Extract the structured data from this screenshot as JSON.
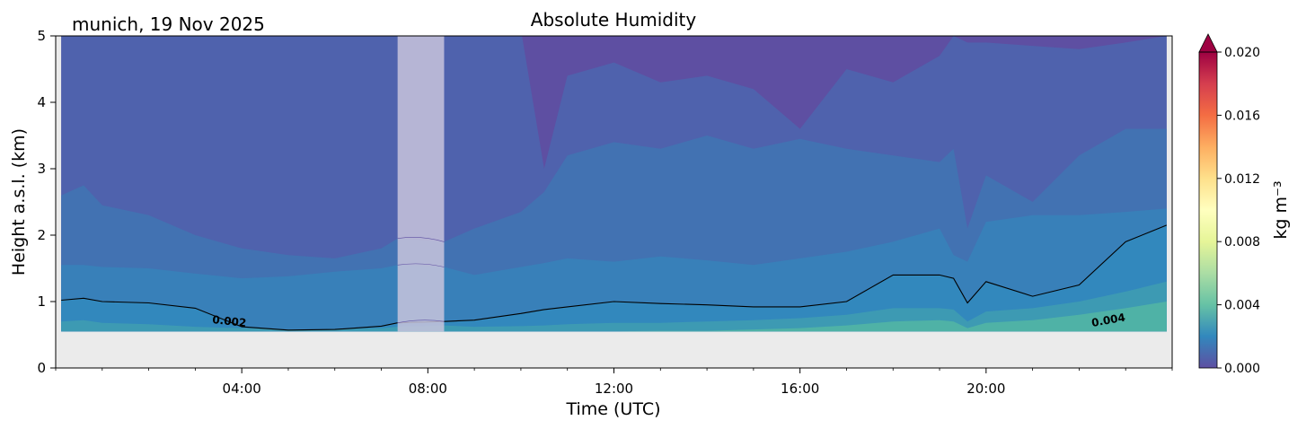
{
  "chart_data": {
    "type": "heatmap",
    "title": "Absolute Humidity",
    "location_date": "munich, 19 Nov 2025",
    "xlabel": "Time (UTC)",
    "ylabel": "Height a.s.l. (km)",
    "xlim_hours": [
      0,
      24
    ],
    "ylim_km": [
      0,
      5
    ],
    "x_ticks": [
      "04:00",
      "08:00",
      "12:00",
      "16:00",
      "20:00"
    ],
    "x_tick_hours": [
      4,
      8,
      12,
      16,
      20
    ],
    "y_ticks": [
      "0",
      "1",
      "2",
      "3",
      "4",
      "5"
    ],
    "y_tick_values": [
      0,
      1,
      2,
      3,
      4,
      5
    ],
    "data_bottom_km": 0.55,
    "data_start_hour": 0.12,
    "data_end_hour": 23.88,
    "missing_data_hours": [
      7.35,
      8.35
    ],
    "colorbar": {
      "label": "kg m⁻³",
      "range": [
        0.0,
        0.02
      ],
      "extend": "max",
      "ticks": [
        "0.000",
        "0.004",
        "0.008",
        "0.012",
        "0.016",
        "0.020"
      ],
      "tick_values": [
        0.0,
        0.004,
        0.008,
        0.012,
        0.016,
        0.02
      ]
    },
    "contour_labels": [
      {
        "text": "0.002",
        "value": 0.002
      },
      {
        "text": "0.004",
        "value": 0.004
      }
    ],
    "boundaries": {
      "hours": [
        0.12,
        0.6,
        1.0,
        2.0,
        3.0,
        4.0,
        5.0,
        6.0,
        7.0,
        7.35,
        8.35,
        9.0,
        10.0,
        10.5,
        11.0,
        12.0,
        13.0,
        14.0,
        15.0,
        16.0,
        17.0,
        18.0,
        19.0,
        19.3,
        19.6,
        20.0,
        21.0,
        22.0,
        23.0,
        23.88
      ],
      "level_0_002_km": [
        1.02,
        1.05,
        1.0,
        0.98,
        0.9,
        0.62,
        0.57,
        0.58,
        0.63,
        0.68,
        0.7,
        0.72,
        0.82,
        0.88,
        0.92,
        1.0,
        0.97,
        0.95,
        0.92,
        0.92,
        1.0,
        1.4,
        1.4,
        1.35,
        0.98,
        1.3,
        1.08,
        1.25,
        1.9,
        2.15
      ],
      "level_0_0015_km": [
        1.55,
        1.55,
        1.52,
        1.5,
        1.42,
        1.35,
        1.38,
        1.45,
        1.5,
        1.55,
        1.52,
        1.4,
        1.52,
        1.58,
        1.65,
        1.6,
        1.68,
        1.62,
        1.55,
        1.65,
        1.75,
        1.9,
        2.1,
        1.7,
        1.6,
        2.2,
        2.3,
        2.3,
        2.35,
        2.4
      ],
      "level_0_001_km": [
        2.6,
        2.75,
        2.45,
        2.3,
        2.0,
        1.8,
        1.7,
        1.65,
        1.8,
        1.95,
        1.9,
        2.1,
        2.35,
        2.65,
        3.2,
        3.4,
        3.3,
        3.5,
        3.3,
        3.45,
        3.3,
        3.2,
        3.1,
        3.3,
        2.1,
        2.9,
        2.5,
        3.2,
        3.6,
        3.6
      ],
      "level_0_0005_km": [
        5.1,
        5.1,
        5.1,
        5.1,
        5.1,
        5.1,
        5.1,
        5.1,
        5.1,
        5.1,
        5.1,
        5.1,
        5.1,
        3.0,
        4.4,
        4.6,
        4.3,
        4.4,
        4.2,
        3.6,
        4.5,
        4.3,
        4.7,
        5.0,
        4.9,
        4.9,
        4.85,
        4.8,
        4.9,
        5.0
      ],
      "level_0_0025_km": [
        0.7,
        0.72,
        0.68,
        0.66,
        0.62,
        0.6,
        0.58,
        0.58,
        0.6,
        0.62,
        0.64,
        0.62,
        0.63,
        0.64,
        0.66,
        0.68,
        0.68,
        0.7,
        0.72,
        0.75,
        0.8,
        0.9,
        0.9,
        0.88,
        0.7,
        0.85,
        0.9,
        1.0,
        1.15,
        1.3
      ],
      "level_0_003_km": [
        0.55,
        0.55,
        0.55,
        0.55,
        0.55,
        0.55,
        0.55,
        0.55,
        0.55,
        0.55,
        0.55,
        0.55,
        0.55,
        0.55,
        0.55,
        0.55,
        0.56,
        0.56,
        0.58,
        0.6,
        0.64,
        0.7,
        0.72,
        0.7,
        0.6,
        0.68,
        0.72,
        0.8,
        0.9,
        1.0
      ]
    },
    "band_colors": {
      "below_0_0005": "#5e4fa2",
      "0_0005_to_0_001": "#4f62ad",
      "0_001_to_0_0015": "#4272b2",
      "0_0015_to_0_002": "#3880b9",
      "0_002_to_0_0025": "#3288bd",
      "0_0025_to_0_003": "#3d9ab3",
      "0_003_to_0_0035": "#4fb2a6"
    },
    "colors": {
      "no_data": "#ebebeb",
      "gap_overlay": "#c8c4dc",
      "contour_line": "#000000"
    }
  }
}
